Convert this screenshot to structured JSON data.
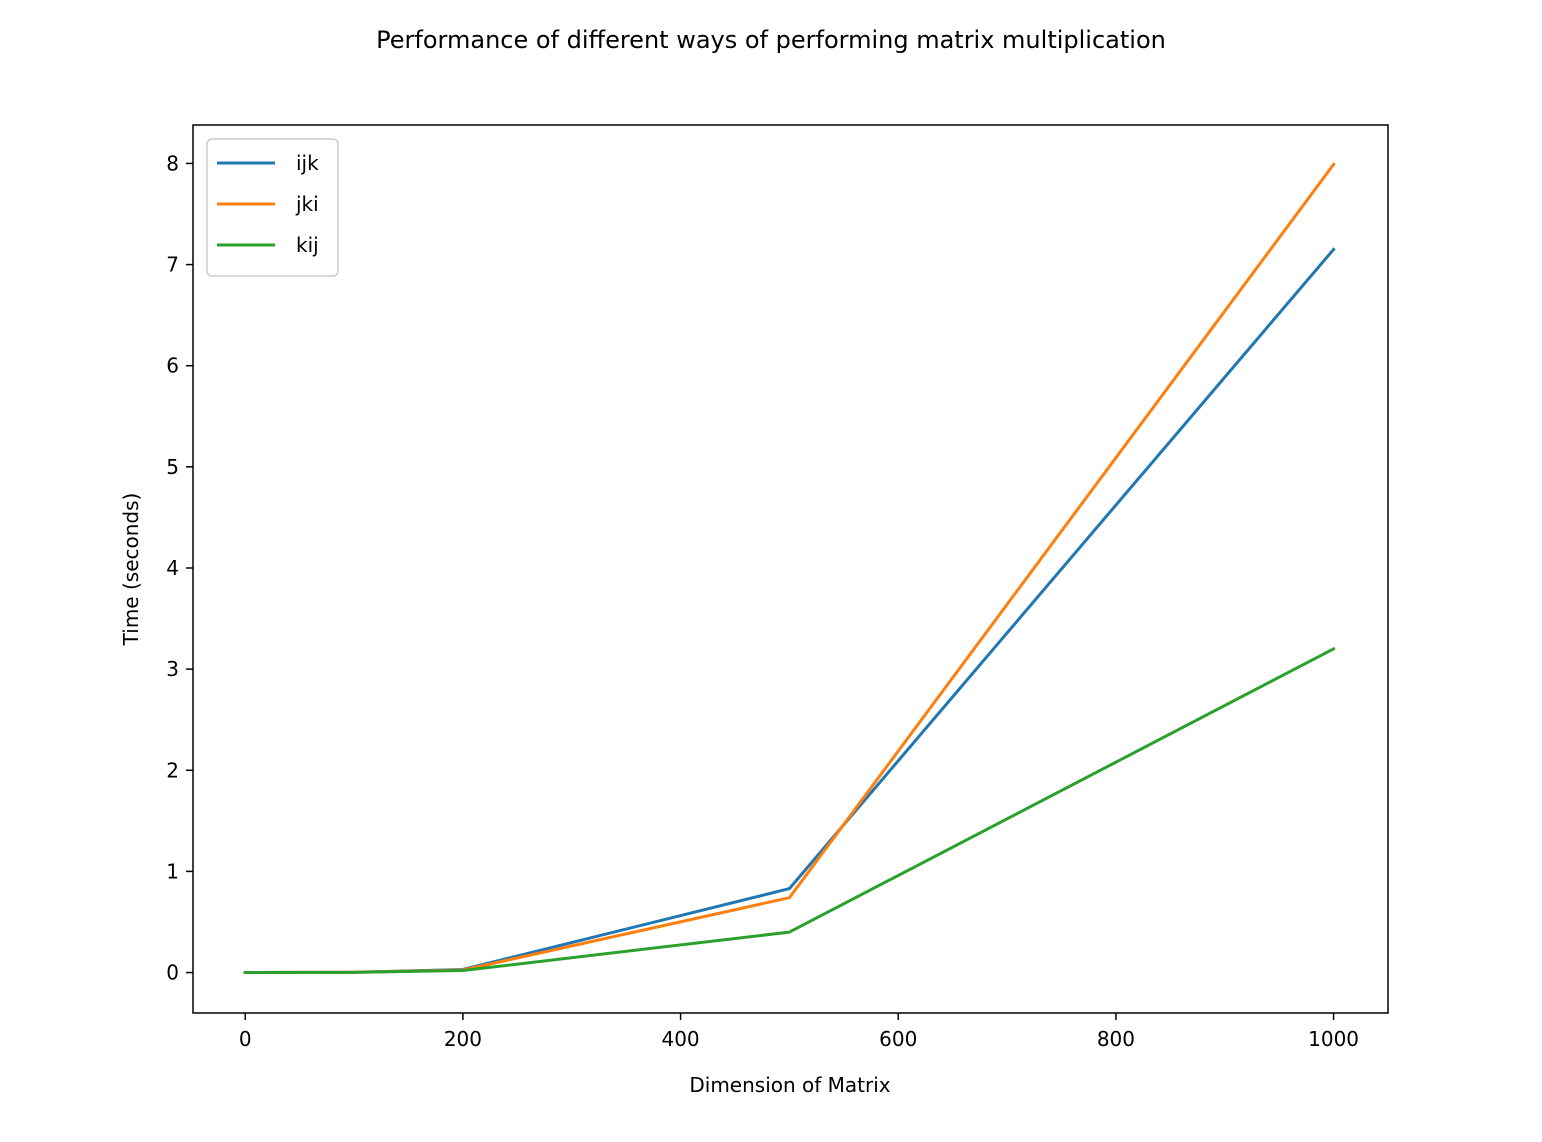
{
  "chart_data": {
    "type": "line",
    "title": "Performance of different ways of performing matrix multiplication",
    "xlabel": "Dimension of Matrix",
    "ylabel": "Time (seconds)",
    "xlim": [
      -48,
      1050
    ],
    "ylim": [
      -0.4,
      8.38
    ],
    "xticks": [
      0,
      200,
      400,
      600,
      800,
      1000
    ],
    "xtick_labels": [
      "0",
      "200",
      "400",
      "600",
      "800",
      "1000"
    ],
    "yticks": [
      0,
      1,
      2,
      3,
      4,
      5,
      6,
      7,
      8
    ],
    "ytick_labels": [
      "0",
      "1",
      "2",
      "3",
      "4",
      "5",
      "6",
      "7",
      "8"
    ],
    "grid": false,
    "legend_position": "top-left",
    "x": [
      0,
      100,
      200,
      500,
      1000
    ],
    "series": [
      {
        "name": "ijk",
        "color": "#1f77b4",
        "values": [
          0.0,
          0.003,
          0.03,
          0.83,
          7.15
        ]
      },
      {
        "name": "jki",
        "color": "#ff7f0e",
        "values": [
          0.0,
          0.003,
          0.025,
          0.74,
          7.99
        ]
      },
      {
        "name": "kij",
        "color": "#2ca02c",
        "values": [
          0.0,
          0.002,
          0.02,
          0.4,
          3.2
        ]
      }
    ]
  }
}
